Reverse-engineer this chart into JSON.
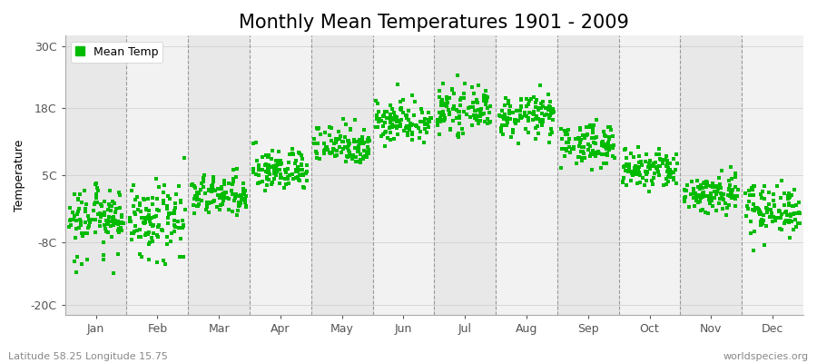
{
  "title": "Monthly Mean Temperatures 1901 - 2009",
  "ylabel": "Temperature",
  "xlabel_months": [
    "Jan",
    "Feb",
    "Mar",
    "Apr",
    "May",
    "Jun",
    "Jul",
    "Aug",
    "Sep",
    "Oct",
    "Nov",
    "Dec"
  ],
  "yticks": [
    -20,
    -8,
    5,
    18,
    30
  ],
  "ytick_labels": [
    "-20C",
    "-8C",
    "5C",
    "18C",
    "30C"
  ],
  "ylim": [
    -22,
    32
  ],
  "dot_color": "#00BB00",
  "background_color": "#EEEEEE",
  "figure_background": "#FFFFFF",
  "footer_left": "Latitude 58.25 Longitude 15.75",
  "footer_right": "worldspecies.org",
  "legend_label": "Mean Temp",
  "monthly_means": [
    -3.0,
    -3.5,
    1.0,
    6.0,
    11.0,
    15.5,
    17.5,
    16.5,
    11.0,
    6.0,
    1.5,
    -1.5
  ],
  "monthly_stds": [
    2.5,
    3.0,
    2.0,
    2.0,
    2.0,
    2.0,
    2.0,
    2.0,
    2.0,
    2.0,
    2.0,
    2.5
  ],
  "n_years": 109,
  "title_fontsize": 15,
  "axis_fontsize": 9,
  "tick_fontsize": 9,
  "footer_fontsize": 8
}
